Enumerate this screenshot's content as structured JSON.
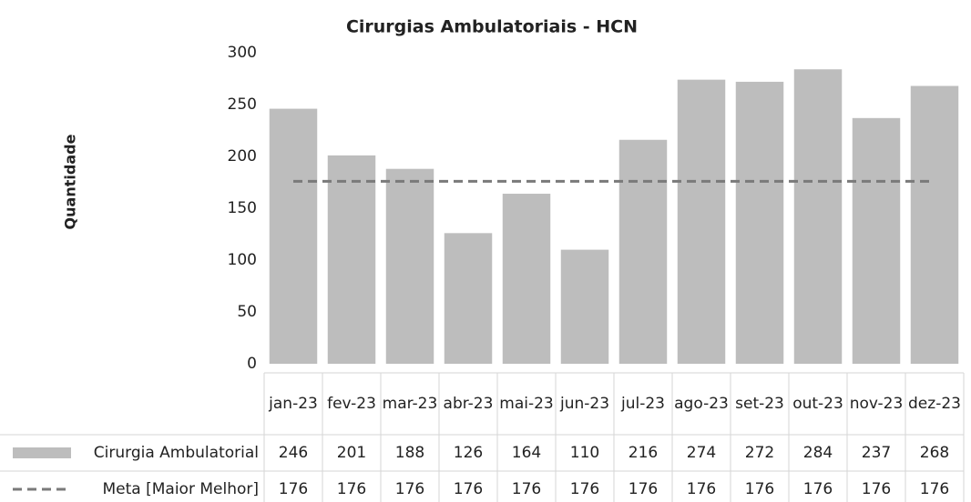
{
  "chart_data": {
    "type": "bar",
    "title": "Cirurgias Ambulatoriais - HCN",
    "y_label": "Quantidade",
    "categories": [
      "jan-23",
      "fev-23",
      "mar-23",
      "abr-23",
      "mai-23",
      "jun-23",
      "jul-23",
      "ago-23",
      "set-23",
      "out-23",
      "nov-23",
      "dez-23"
    ],
    "series": [
      {
        "name": "Cirurgia Ambulatorial",
        "color": "#bdbdbd",
        "type": "bar",
        "values": [
          246,
          201,
          188,
          126,
          164,
          110,
          216,
          274,
          272,
          284,
          237,
          268
        ]
      },
      {
        "name": "Meta [Maior Melhor]",
        "color": "#7a7a7a",
        "type": "line",
        "dashed": true,
        "values": [
          176,
          176,
          176,
          176,
          176,
          176,
          176,
          176,
          176,
          176,
          176,
          176
        ]
      }
    ],
    "ylim": [
      0,
      300
    ],
    "yticks": [
      0,
      50,
      100,
      150,
      200,
      250,
      300
    ],
    "grid": false,
    "data_table": true
  }
}
